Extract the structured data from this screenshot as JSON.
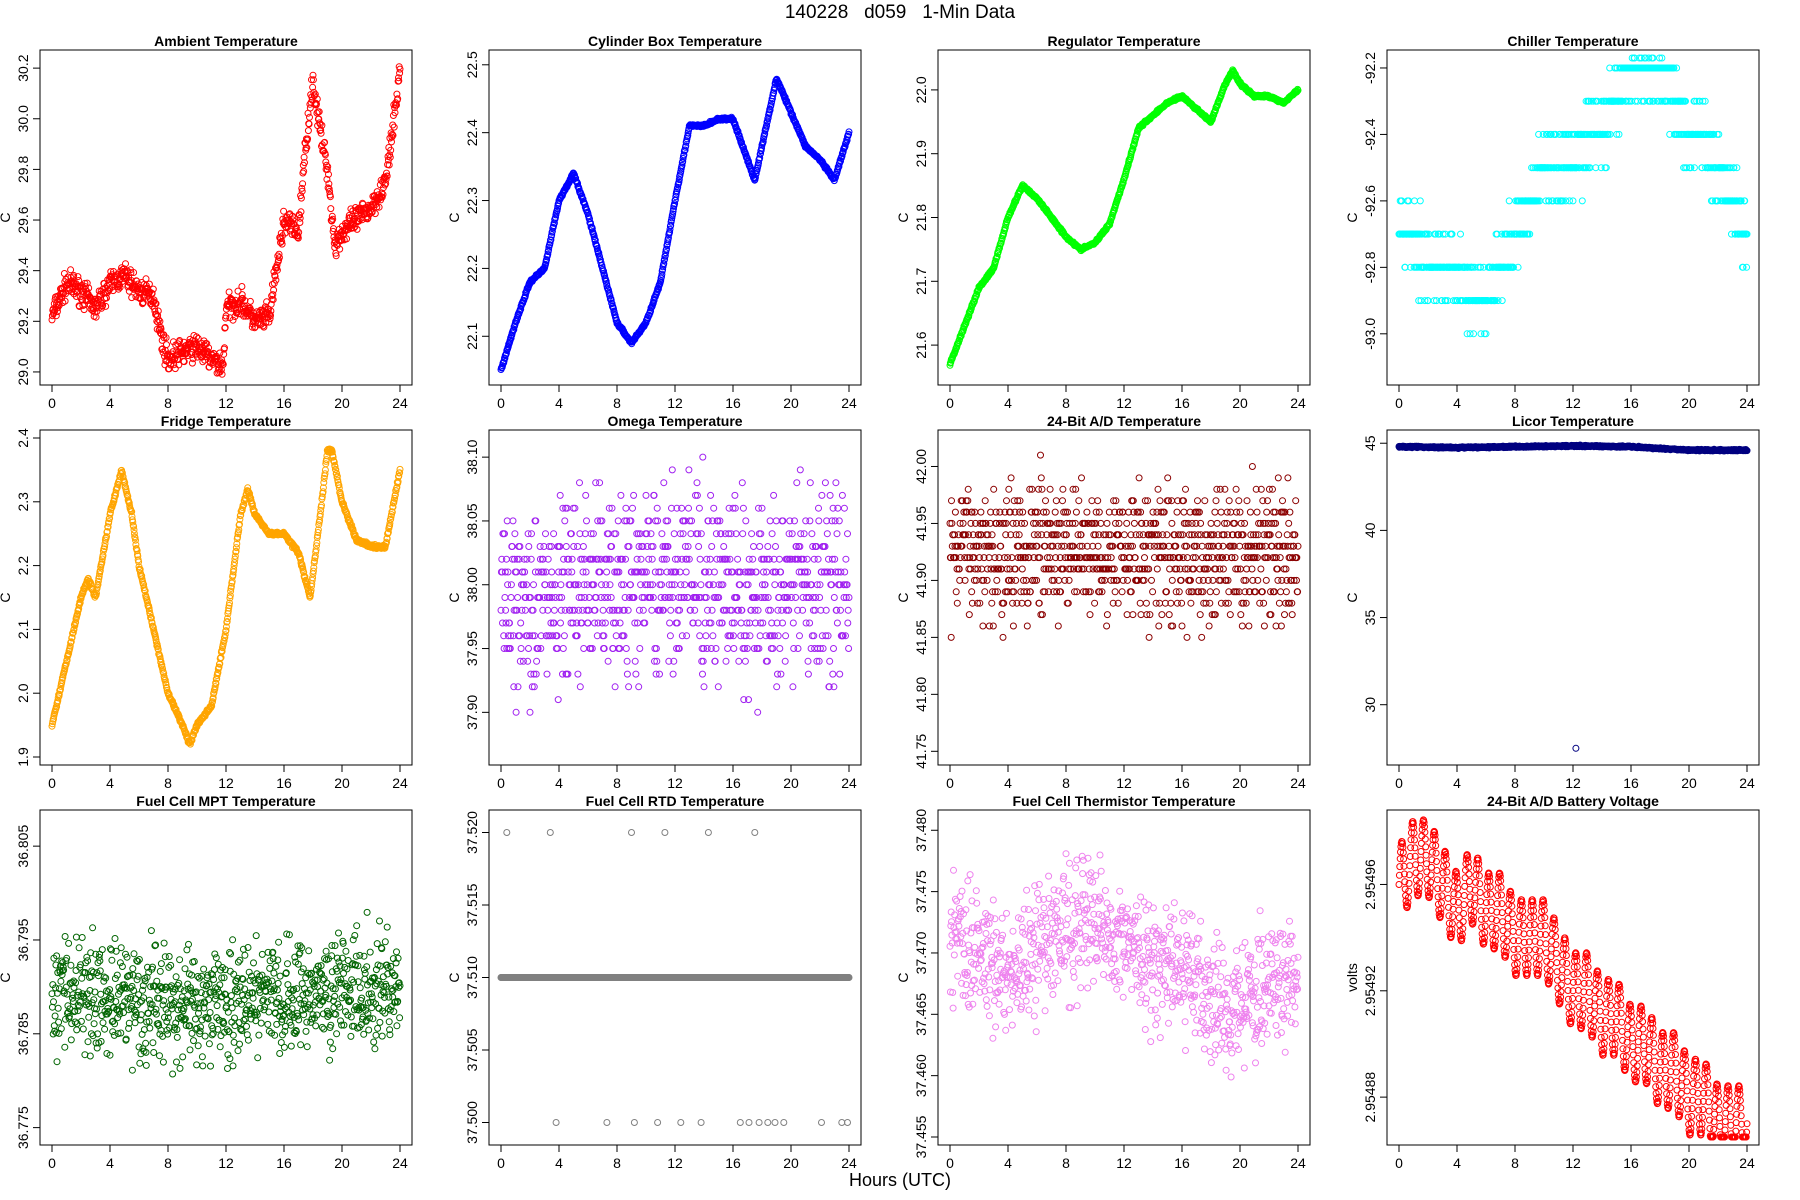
{
  "figure": {
    "title": "140228   d059   1-Min Data",
    "xlabel": "Hours (UTC)"
  },
  "chart_data": [
    {
      "type": "scatter",
      "title": "Ambient Temperature",
      "ylabel": "C",
      "xlim": [
        0,
        24
      ],
      "ylim": [
        28.98,
        30.24
      ],
      "xticks": [
        "0",
        "4",
        "8",
        "12",
        "16",
        "20",
        "24"
      ],
      "yticks": [
        "29.0",
        "29.2",
        "29.4",
        "29.6",
        "29.8",
        "30.0",
        "30.2"
      ],
      "color": "#ff0000",
      "series": [
        {
          "x": [
            0,
            1,
            2,
            3,
            4,
            5,
            6,
            7,
            7.5,
            8,
            9,
            10,
            11,
            11.8,
            12,
            13,
            14,
            15,
            16,
            17,
            17.5,
            18,
            18.5,
            19,
            19.5,
            20,
            21,
            22,
            23,
            23.5,
            24
          ],
          "y": [
            29.22,
            29.35,
            29.32,
            29.25,
            29.35,
            29.38,
            29.32,
            29.3,
            29.15,
            29.05,
            29.08,
            29.1,
            29.05,
            29.02,
            29.25,
            29.28,
            29.2,
            29.22,
            29.6,
            29.55,
            29.9,
            30.15,
            29.95,
            29.8,
            29.5,
            29.55,
            29.6,
            29.65,
            29.75,
            29.95,
            30.2
          ],
          "spread": 0.05
        }
      ]
    },
    {
      "type": "scatter",
      "title": "Cylinder Box Temperature",
      "ylabel": "C",
      "xlim": [
        0,
        24
      ],
      "ylim": [
        22.04,
        22.51
      ],
      "xticks": [
        "0",
        "4",
        "8",
        "12",
        "16",
        "20",
        "24"
      ],
      "yticks": [
        "22.1",
        "22.2",
        "22.3",
        "22.4",
        "22.5"
      ],
      "color": "#0000ff",
      "series": [
        {
          "x": [
            0,
            1,
            2,
            3,
            4,
            5,
            6,
            7,
            8,
            9,
            10,
            11,
            12,
            13,
            14,
            15,
            16,
            17,
            17.5,
            18,
            19,
            20,
            21,
            22,
            23,
            24
          ],
          "y": [
            22.05,
            22.12,
            22.18,
            22.2,
            22.3,
            22.34,
            22.28,
            22.2,
            22.12,
            22.09,
            22.12,
            22.18,
            22.3,
            22.41,
            22.41,
            22.42,
            22.42,
            22.36,
            22.33,
            22.38,
            22.48,
            22.43,
            22.38,
            22.36,
            22.33,
            22.4
          ],
          "spread": 0.002
        }
      ]
    },
    {
      "type": "scatter",
      "title": "Regulator Temperature",
      "ylabel": "C",
      "xlim": [
        0,
        24
      ],
      "ylim": [
        21.55,
        22.05
      ],
      "xticks": [
        "0",
        "4",
        "8",
        "12",
        "16",
        "20",
        "24"
      ],
      "yticks": [
        "21.6",
        "21.7",
        "21.8",
        "21.9",
        "22.0"
      ],
      "color": "#00ff00",
      "series": [
        {
          "x": [
            0,
            1,
            2,
            3,
            4,
            5,
            6,
            7,
            8,
            9,
            10,
            11,
            12,
            13,
            14,
            15,
            16,
            17,
            18,
            19,
            19.5,
            20,
            21,
            22,
            23,
            24
          ],
          "y": [
            21.57,
            21.63,
            21.69,
            21.72,
            21.8,
            21.85,
            21.83,
            21.8,
            21.77,
            21.75,
            21.76,
            21.79,
            21.86,
            21.94,
            21.96,
            21.98,
            21.99,
            21.97,
            21.95,
            22.01,
            22.03,
            22.01,
            21.99,
            21.99,
            21.98,
            22.0
          ],
          "spread": 0.002
        }
      ]
    },
    {
      "type": "scatter",
      "title": "Chiller Temperature",
      "ylabel": "C",
      "xlim": [
        0,
        24
      ],
      "ylim": [
        -93.13,
        -92.17
      ],
      "xticks": [
        "0",
        "4",
        "8",
        "12",
        "16",
        "20",
        "24"
      ],
      "yticks": [
        "-93.0",
        "-92.8",
        "-92.6",
        "-92.4",
        "-92.2"
      ],
      "color": "#00ffff",
      "series": [
        {
          "x": [
            0,
            1,
            2,
            3,
            4,
            5,
            6,
            7,
            8,
            9,
            10,
            11,
            12,
            13,
            14,
            15,
            16,
            17,
            18,
            19,
            20,
            21,
            22,
            23,
            24
          ],
          "y": [
            -92.7,
            -92.7,
            -92.8,
            -92.8,
            -92.8,
            -92.9,
            -92.9,
            -92.8,
            -92.7,
            -92.6,
            -92.5,
            -92.5,
            -92.5,
            -92.4,
            -92.4,
            -92.3,
            -92.2,
            -92.2,
            -92.2,
            -92.3,
            -92.4,
            -92.4,
            -92.5,
            -92.6,
            -92.7
          ],
          "spread": 0.1,
          "quantum": 0.1
        }
      ]
    },
    {
      "type": "scatter",
      "title": "Fridge Temperature",
      "ylabel": "C",
      "xlim": [
        0,
        24
      ],
      "ylim": [
        1.9,
        2.4
      ],
      "xticks": [
        "0",
        "4",
        "8",
        "12",
        "16",
        "20",
        "24"
      ],
      "yticks": [
        "1.9",
        "2.0",
        "2.1",
        "2.2",
        "2.3",
        "2.4"
      ],
      "color": "#ffa500",
      "series": [
        {
          "x": [
            0,
            1,
            2,
            2.5,
            3,
            4,
            4.8,
            5.5,
            6,
            7,
            8,
            9,
            9.5,
            10,
            11,
            12,
            13,
            13.5,
            14,
            15,
            16,
            17,
            17.8,
            18.5,
            19,
            19.3,
            20,
            21,
            22,
            23,
            24
          ],
          "y": [
            1.95,
            2.05,
            2.15,
            2.18,
            2.15,
            2.28,
            2.35,
            2.28,
            2.2,
            2.1,
            2.0,
            1.95,
            1.92,
            1.95,
            1.98,
            2.1,
            2.28,
            2.32,
            2.28,
            2.25,
            2.25,
            2.22,
            2.15,
            2.28,
            2.38,
            2.38,
            2.3,
            2.24,
            2.23,
            2.23,
            2.35
          ],
          "spread": 0.003
        }
      ]
    },
    {
      "type": "scatter",
      "title": "Omega Temperature",
      "ylabel": "C",
      "xlim": [
        0,
        24
      ],
      "ylim": [
        37.865,
        38.115
      ],
      "xticks": [
        "0",
        "4",
        "8",
        "12",
        "16",
        "20",
        "24"
      ],
      "yticks": [
        "37.90",
        "37.95",
        "38.00",
        "38.05",
        "38.10"
      ],
      "color": "#a020f0",
      "series": [
        {
          "x": [
            0,
            2,
            4,
            6,
            8,
            10,
            12,
            14,
            16,
            17,
            18,
            20,
            22,
            24
          ],
          "y": [
            37.99,
            37.99,
            37.99,
            38.0,
            37.995,
            38.0,
            38.01,
            38.0,
            38.0,
            37.98,
            37.99,
            38.0,
            38.0,
            38.0
          ],
          "spread": 0.07,
          "quantum": 0.01
        }
      ]
    },
    {
      "type": "scatter",
      "title": "24-Bit A/D Temperature",
      "ylabel": "C",
      "xlim": [
        0,
        24
      ],
      "ylim": [
        41.745,
        42.025
      ],
      "xticks": [
        "0",
        "4",
        "8",
        "12",
        "16",
        "20",
        "24"
      ],
      "yticks": [
        "41.75",
        "41.80",
        "41.85",
        "41.90",
        "41.95",
        "42.00"
      ],
      "color": "#8b0000",
      "series": [
        {
          "x": [
            0,
            4,
            8,
            12,
            16,
            20,
            24
          ],
          "y": [
            41.925,
            41.93,
            41.925,
            41.93,
            41.92,
            41.92,
            41.925
          ],
          "spread": 0.06,
          "quantum": 0.01
        }
      ]
    },
    {
      "type": "scatter",
      "title": "Licor Temperature",
      "ylabel": "C",
      "xlim": [
        0,
        24
      ],
      "ylim": [
        27.0,
        45.3
      ],
      "xticks": [
        "0",
        "4",
        "8",
        "12",
        "16",
        "20",
        "24"
      ],
      "yticks": [
        "30",
        "35",
        "40",
        "45"
      ],
      "color": "#000080",
      "series": [
        {
          "x": [
            0,
            4,
            8,
            12,
            16,
            20,
            24
          ],
          "y": [
            44.8,
            44.75,
            44.8,
            44.85,
            44.8,
            44.6,
            44.6
          ],
          "spread": 0.04
        },
        {
          "x": [
            12.2
          ],
          "y": [
            27.5
          ],
          "spread": 0
        }
      ]
    },
    {
      "type": "scatter",
      "title": "Fuel Cell MPT Temperature",
      "ylabel": "C",
      "xlim": [
        0,
        24
      ],
      "ylim": [
        36.774,
        36.808
      ],
      "xticks": [
        "0",
        "4",
        "8",
        "12",
        "16",
        "20",
        "24"
      ],
      "yticks": [
        "36.775",
        "36.785",
        "36.795",
        "36.805"
      ],
      "color": "#006400",
      "series": [
        {
          "x": [
            0,
            4,
            8,
            12,
            16,
            20,
            24
          ],
          "y": [
            36.79,
            36.789,
            36.788,
            36.788,
            36.789,
            36.79,
            36.79
          ],
          "spread": 0.006
        }
      ]
    },
    {
      "type": "scatter",
      "title": "Fuel Cell RTD Temperature",
      "ylabel": "C",
      "xlim": [
        0,
        24
      ],
      "ylim": [
        37.499,
        37.521
      ],
      "xticks": [
        "0",
        "4",
        "8",
        "12",
        "16",
        "20",
        "24"
      ],
      "yticks": [
        "37.500",
        "37.505",
        "37.510",
        "37.515",
        "37.520"
      ],
      "color": "#808080",
      "series": [
        {
          "x": [
            0,
            24
          ],
          "y": [
            37.51,
            37.51
          ],
          "spread": 0
        },
        {
          "x": [
            0.4,
            3.4,
            9.0,
            11.3,
            14.3,
            17.5
          ],
          "y": [
            37.52,
            37.52,
            37.52,
            37.52,
            37.52,
            37.52
          ],
          "spread": 0,
          "mode": "points"
        },
        {
          "x": [
            3.8,
            7.3,
            9.2,
            10.8,
            12.4,
            13.8,
            16.5,
            17.1,
            17.8,
            18.4,
            18.9,
            19.5,
            22.1,
            23.5,
            23.9
          ],
          "y": [
            37.5,
            37.5,
            37.5,
            37.5,
            37.5,
            37.5,
            37.5,
            37.5,
            37.5,
            37.5,
            37.5,
            37.5,
            37.5,
            37.5,
            37.5
          ],
          "spread": 0,
          "mode": "points"
        }
      ]
    },
    {
      "type": "scatter",
      "title": "Fuel Cell Thermistor Temperature",
      "ylabel": "C",
      "xlim": [
        0,
        24
      ],
      "ylim": [
        37.455,
        37.481
      ],
      "xticks": [
        "0",
        "4",
        "8",
        "12",
        "16",
        "20",
        "24"
      ],
      "yticks": [
        "37.455",
        "37.460",
        "37.465",
        "37.470",
        "37.475",
        "37.480"
      ],
      "color": "#ee82ee",
      "series": [
        {
          "x": [
            0,
            2,
            4,
            6,
            8,
            10,
            12,
            14,
            16,
            17,
            18,
            20,
            22,
            24
          ],
          "y": [
            37.471,
            37.47,
            37.468,
            37.47,
            37.472,
            37.473,
            37.471,
            37.469,
            37.468,
            37.468,
            37.466,
            37.466,
            37.467,
            37.468
          ],
          "spread": 0.005
        }
      ]
    },
    {
      "type": "scatter",
      "title": "24-Bit A/D Battery Voltage",
      "ylabel": "volts",
      "xlim": [
        0,
        24
      ],
      "ylim": [
        2.954865,
        2.954985
      ],
      "xticks": [
        "0",
        "4",
        "8",
        "12",
        "16",
        "20",
        "24"
      ],
      "yticks": [
        "2.95488",
        "2.95492",
        "2.95496"
      ],
      "color": "#ff0000",
      "series": [
        {
          "x": [
            0,
            1,
            2,
            3,
            4,
            5,
            6,
            7,
            8,
            9,
            10,
            11,
            12,
            13,
            14,
            15,
            16,
            17,
            18,
            19,
            20,
            21,
            22,
            23,
            24
          ],
          "y": [
            2.95496,
            2.95497,
            2.95497,
            2.95496,
            2.95495,
            2.95496,
            2.95495,
            2.95495,
            2.95494,
            2.95494,
            2.95494,
            2.95493,
            2.95492,
            2.95492,
            2.95491,
            2.95491,
            2.9549,
            2.9549,
            2.95489,
            2.95489,
            2.95488,
            2.95488,
            2.95487,
            2.95487,
            2.95487
          ],
          "spread": 6.5e-06,
          "wave": 0.75
        }
      ]
    }
  ]
}
